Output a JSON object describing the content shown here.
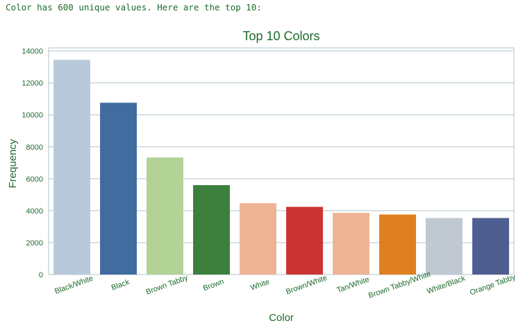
{
  "console": {
    "output_line": "Color has 600 unique values. Here are the top 10:"
  },
  "colors": {
    "axis_text": "#1b6b2a",
    "grid": "#b0c4cc",
    "frame": "#b0c4cc"
  },
  "chart_data": {
    "type": "bar",
    "title": "Top 10 Colors",
    "xlabel": "Color",
    "ylabel": "Frequency",
    "ylim": [
      0,
      14200
    ],
    "yticks": [
      0,
      2000,
      4000,
      6000,
      8000,
      10000,
      12000,
      14000
    ],
    "grid": true,
    "categories": [
      "Black/White",
      "Black",
      "Brown Tabby",
      "Brown",
      "White",
      "Brown/White",
      "Tan/White",
      "Brown Tabby/White",
      "White/Black",
      "Orange Tabby"
    ],
    "values": [
      13450,
      10760,
      7330,
      5600,
      4470,
      4240,
      3860,
      3760,
      3540,
      3540
    ],
    "bar_colors": [
      "#b8cad9",
      "#426ba0",
      "#b3d296",
      "#3d7f3d",
      "#eeb394",
      "#cc3333",
      "#eeb394",
      "#e07f22",
      "#c0c8d2",
      "#4f5e91"
    ]
  }
}
